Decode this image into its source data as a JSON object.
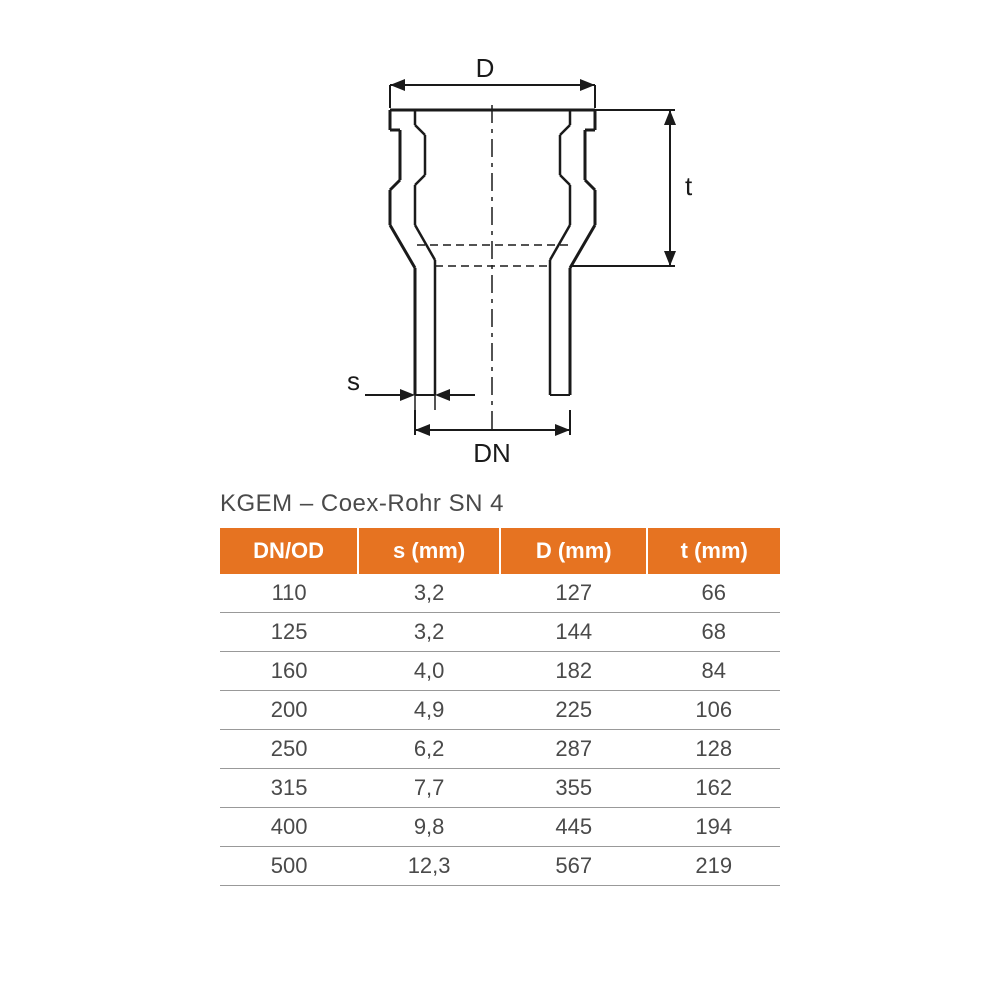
{
  "diagram": {
    "labels": {
      "D": "D",
      "t": "t",
      "s": "s",
      "DN": "DN"
    },
    "colors": {
      "stroke": "#1a1a1a",
      "text": "#1a1a1a",
      "background": "#ffffff"
    },
    "stroke_width": 3,
    "dimensions": {
      "socket_outer_width": 200,
      "pipe_outer_width": 160,
      "socket_height": 140,
      "total_height": 300
    }
  },
  "table": {
    "title": "KGEM – Coex-Rohr SN 4",
    "header_bg_color": "#e67321",
    "header_text_color": "#ffffff",
    "cell_text_color": "#4a4a4a",
    "border_color": "#999999",
    "header_fontsize": 22,
    "cell_fontsize": 22,
    "title_fontsize": 24,
    "columns": [
      "DN/OD",
      "s (mm)",
      "D (mm)",
      "t (mm)"
    ],
    "rows": [
      [
        "110",
        "3,2",
        "127",
        "66"
      ],
      [
        "125",
        "3,2",
        "144",
        "68"
      ],
      [
        "160",
        "4,0",
        "182",
        "84"
      ],
      [
        "200",
        "4,9",
        "225",
        "106"
      ],
      [
        "250",
        "6,2",
        "287",
        "128"
      ],
      [
        "315",
        "7,7",
        "355",
        "162"
      ],
      [
        "400",
        "9,8",
        "445",
        "194"
      ],
      [
        "500",
        "12,3",
        "567",
        "219"
      ]
    ]
  }
}
